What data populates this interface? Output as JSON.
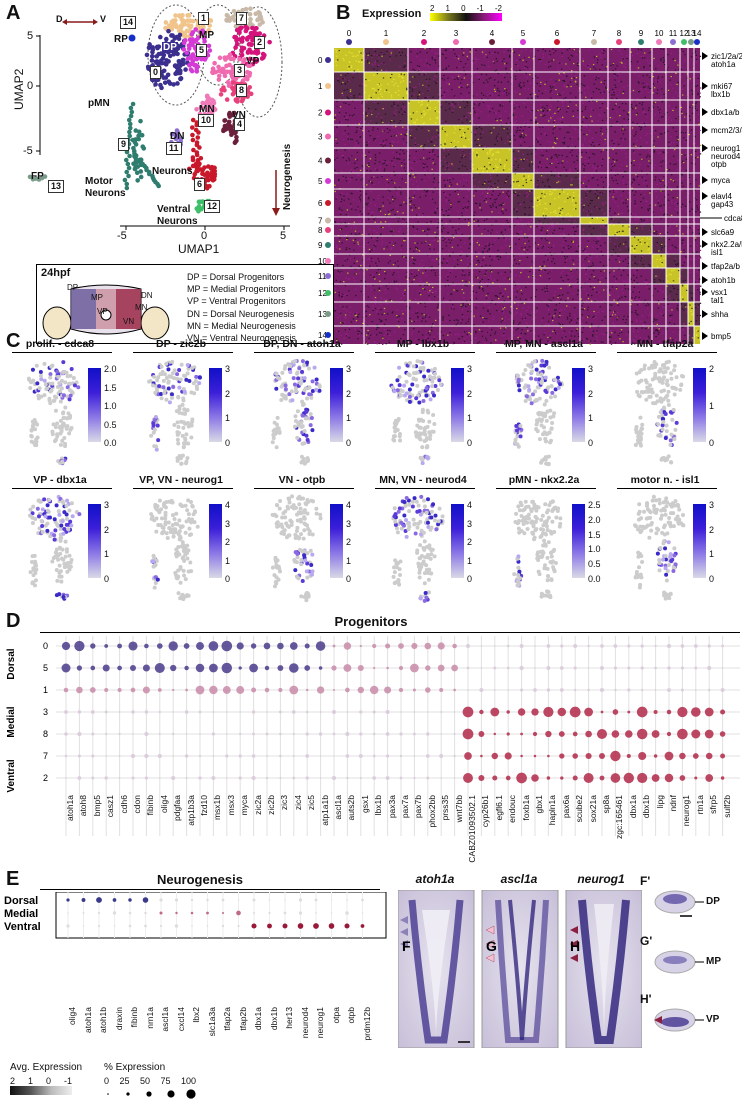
{
  "panels": {
    "A": "A",
    "B": "B",
    "C": "C",
    "D": "D",
    "E": "E",
    "F": "F",
    "G": "G",
    "H": "H",
    "Fp": "F'",
    "Gp": "G'",
    "Hp": "H'"
  },
  "panelA": {
    "axis_dv": "D",
    "axis_dv_right": "V",
    "ylabel": "UMAP2",
    "xlabel": "UMAP1",
    "yticks": [
      "5",
      "0",
      "-5"
    ],
    "xticks": [
      "-5",
      "0",
      "5"
    ],
    "cluster_labels": [
      "0",
      "1",
      "2",
      "3",
      "4",
      "5",
      "6",
      "7",
      "8",
      "9",
      "10",
      "11",
      "12",
      "13",
      "14"
    ],
    "region_labels": {
      "RP": "RP",
      "DP": "DP",
      "MP": "MP",
      "VP": "VP",
      "pMN": "pMN",
      "MN": "MN",
      "DN": "DN",
      "VN": "VN",
      "FP": "FP",
      "motor": "Motor",
      "motor2": "Neurons",
      "neurons": "Neurons",
      "ventral": "Ventral",
      "ventral2": "Neurons",
      "neurogenesis": "Neurogenesis"
    },
    "legend_title": "24hpf",
    "legend_items": [
      "DP = Dorsal Progenitors",
      "MP = Medial Progenitors",
      "VP = Ventral Progenitors",
      "DN = Dorsal Neurogenesis",
      "MN = Medial Neurogenesis",
      "VN = Ventral Neurogenesis"
    ],
    "schematic_labels": {
      "DP": "DP",
      "MP": "MP",
      "VP": "VP",
      "DN": "DN",
      "MN": "MN",
      "VN": "VN"
    },
    "colors": {
      "c0": "#3b2f8f",
      "c1": "#f0c48a",
      "c2": "#d4147a",
      "c3": "#f06ab0",
      "c4": "#6b1f3a",
      "c5": "#d63ad6",
      "c6": "#c8182a",
      "c7": "#c8b9a8",
      "c8": "#e8407a",
      "c9": "#2e7d6e",
      "c10": "#f07ab8",
      "c11": "#8b6fd0",
      "c12": "#3fbf6a",
      "c13": "#7a9a8a",
      "c14": "#1530c8"
    }
  },
  "panelB": {
    "colorbar_title": "Expression",
    "colorbar_ticks": [
      "2",
      "1",
      "0",
      "-1",
      "-2"
    ],
    "column_labels": [
      "0",
      "1",
      "2",
      "3",
      "4",
      "5",
      "6",
      "7",
      "8",
      "9",
      "10",
      "11",
      "12",
      "13",
      "14"
    ],
    "row_labels": [
      "0",
      "1",
      "2",
      "3",
      "4",
      "5",
      "6",
      "7",
      "8",
      "9",
      "10",
      "11",
      "12",
      "13",
      "14"
    ],
    "gene_labels": [
      "zic1/2a/2b",
      "atoh1a",
      "mki67",
      "lbx1b",
      "dbx1a/b",
      "mcm2/3/4/5/6",
      "neurog1",
      "neurod4",
      "otpb",
      "myca",
      "elavl4",
      "gap43",
      "cdca8",
      "slc6a9",
      "nkx2.2a/b",
      "isl1",
      "tfap2a/b",
      "atoh1b",
      "vsx1",
      "tal1",
      "shha",
      "bmp5"
    ]
  },
  "panelC": {
    "plots": [
      {
        "title": "prolif. - cdca8",
        "ticks": [
          "2.0",
          "1.5",
          "1.0",
          "0.5",
          "0.0"
        ]
      },
      {
        "title": "DP - zic2b",
        "ticks": [
          "3",
          "2",
          "1",
          "0"
        ]
      },
      {
        "title": "DP, DN - atoh1a",
        "ticks": [
          "3",
          "2",
          "1",
          "0"
        ]
      },
      {
        "title": "MP - lbx1b",
        "ticks": [
          "3",
          "2",
          "1",
          "0"
        ]
      },
      {
        "title": "MP, MN - ascl1a",
        "ticks": [
          "3",
          "2",
          "1",
          "0"
        ]
      },
      {
        "title": "MN - tfap2a",
        "ticks": [
          "2",
          "1",
          "0"
        ]
      },
      {
        "title": "VP - dbx1a",
        "ticks": [
          "3",
          "2",
          "1",
          "0"
        ]
      },
      {
        "title": "VP, VN - neurog1",
        "ticks": [
          "4",
          "3",
          "2",
          "1",
          "0"
        ]
      },
      {
        "title": "VN - otpb",
        "ticks": [
          "4",
          "3",
          "2",
          "1",
          "0"
        ]
      },
      {
        "title": "MN, VN - neurod4",
        "ticks": [
          "4",
          "3",
          "2",
          "1",
          "0"
        ]
      },
      {
        "title": "pMN - nkx2.2a",
        "ticks": [
          "2.5",
          "2.0",
          "1.5",
          "1.0",
          "0.5",
          "0.0"
        ]
      },
      {
        "title": "motor n. - isl1",
        "ticks": [
          "3",
          "2",
          "1",
          "0"
        ]
      }
    ]
  },
  "panelD": {
    "title": "Progenitors",
    "group_labels": {
      "dorsal": "Dorsal",
      "medial": "Medial",
      "ventral": "Ventral"
    },
    "row_labels": [
      "0",
      "5",
      "1",
      "3",
      "8",
      "7",
      "2"
    ],
    "genes": [
      "atoh1a",
      "atoh8",
      "bmp5",
      "casz1",
      "cdh6",
      "cdon",
      "fibinb",
      "olig4",
      "pdgfaa",
      "atp1b3a",
      "fzd10",
      "msx1b",
      "msx3",
      "myca",
      "zic2a",
      "zic2b",
      "zic3",
      "zic4",
      "zic5",
      "atp1a1b",
      "ascl1a",
      "auts2b",
      "gsx1",
      "lbx1b",
      "pax3a",
      "pax7a",
      "pax7b",
      "phox2bb",
      "prss35",
      "wnt7bb",
      "CABZ01093502.1",
      "cyp26b1",
      "egfl6.1",
      "endouc",
      "foxb1a",
      "gbx1",
      "hapln1a",
      "pax6a",
      "scube2",
      "sox21a",
      "sp8a",
      "zgc:165461",
      "dbx1a",
      "dbx1b",
      "lipg",
      "ndnf",
      "neurog1",
      "rtn1a",
      "sfrp5",
      "sulf2b"
    ]
  },
  "panelE": {
    "title": "Neurogenesis",
    "row_labels": [
      "Dorsal",
      "Medial",
      "Ventral"
    ],
    "genes": [
      "olig4",
      "atoh1a",
      "atoh1b",
      "draxin",
      "fibinb",
      "nrn1a",
      "ascl1a",
      "cxcl14",
      "lbx2",
      "slc1a3a",
      "tfap2a",
      "tfap2b",
      "dbx1a",
      "dbx1b",
      "her13",
      "neurod4",
      "neurog1",
      "otpa",
      "otpb",
      "prdm12b"
    ],
    "avg_legend_title": "Avg. Expression",
    "avg_ticks": [
      "2",
      "1",
      "0",
      "-1"
    ],
    "pct_legend_title": "% Expression",
    "pct_ticks": [
      "0",
      "25",
      "50",
      "75",
      "100"
    ]
  },
  "panelISH": {
    "F_title": "atoh1a",
    "G_title": "ascl1a",
    "H_title": "neurog1",
    "Fp_label": "DP",
    "Gp_label": "MP",
    "Hp_label": "VP"
  }
}
